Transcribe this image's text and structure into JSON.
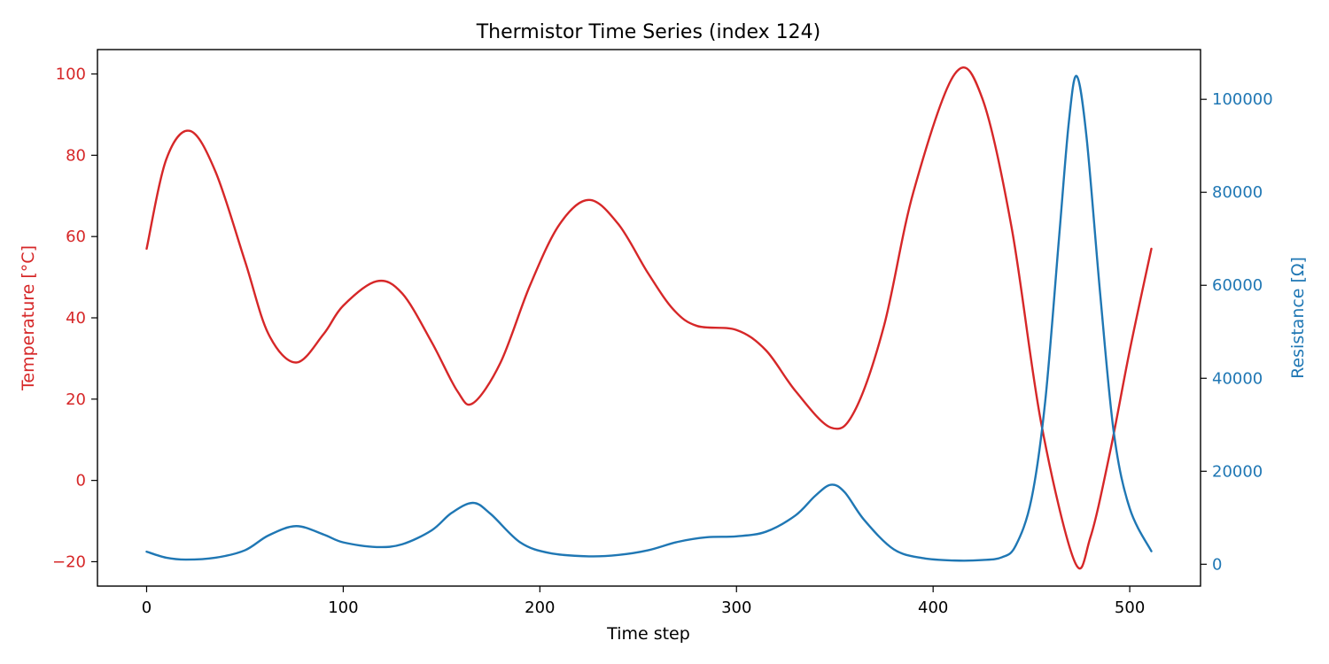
{
  "chart_data": {
    "type": "line",
    "title": "Thermistor Time Series (index 124)",
    "xlabel": "Time step",
    "xlim": [
      -25,
      536
    ],
    "xticks": [
      0,
      100,
      200,
      300,
      400,
      500
    ],
    "grid": false,
    "colors": {
      "temperature": "#d62728",
      "resistance": "#1f77b4"
    },
    "left_axis": {
      "label": "Temperature [°C]",
      "ylim": [
        -26.0,
        106.0
      ],
      "ticks": [
        -20,
        0,
        20,
        40,
        60,
        80,
        100
      ],
      "tick_labels": [
        "−20",
        "0",
        "20",
        "40",
        "60",
        "80",
        "100"
      ]
    },
    "right_axis": {
      "label": "Resistance [Ω]",
      "ylim": [
        -4700,
        110700
      ],
      "ticks": [
        0,
        20000,
        40000,
        60000,
        80000,
        100000
      ],
      "tick_labels": [
        "0",
        "20000",
        "40000",
        "60000",
        "80000",
        "100000"
      ]
    },
    "series": [
      {
        "axis": "left",
        "x": [
          0,
          10,
          22,
          35,
          50,
          62,
          76,
          90,
          100,
          117,
          130,
          145,
          158,
          166,
          180,
          195,
          210,
          225,
          240,
          255,
          268,
          280,
          300,
          315,
          330,
          348,
          360,
          375,
          390,
          411,
          425,
          440,
          455,
          472,
          480,
          490,
          500,
          511
        ],
        "y": [
          57,
          79,
          86,
          76,
          54,
          36,
          29,
          36,
          43,
          49,
          46,
          34,
          22,
          19,
          29,
          48,
          63,
          69,
          63,
          51,
          42,
          38,
          37,
          32,
          22,
          13,
          17,
          38,
          71,
          100,
          94,
          62,
          14,
          -20,
          -14,
          7,
          32,
          57
        ]
      },
      {
        "axis": "right",
        "x": [
          0,
          10,
          20,
          35,
          50,
          62,
          76,
          90,
          100,
          117,
          130,
          145,
          155,
          166,
          175,
          190,
          205,
          225,
          240,
          255,
          270,
          285,
          300,
          315,
          330,
          340,
          348,
          355,
          365,
          380,
          395,
          411,
          425,
          435,
          442,
          450,
          457,
          464,
          469,
          473,
          478,
          485,
          492,
          500,
          511
        ],
        "y": [
          2700,
          1400,
          1000,
          1400,
          3000,
          6200,
          8200,
          6400,
          4700,
          3700,
          4300,
          7300,
          11000,
          13200,
          10800,
          4700,
          2400,
          1700,
          2000,
          3000,
          4800,
          5800,
          6000,
          7000,
          10500,
          14700,
          17100,
          15500,
          9500,
          3200,
          1300,
          800,
          900,
          1500,
          4000,
          14000,
          35000,
          70000,
          95000,
          105000,
          92000,
          58000,
          28000,
          12000,
          2800
        ]
      }
    ]
  }
}
